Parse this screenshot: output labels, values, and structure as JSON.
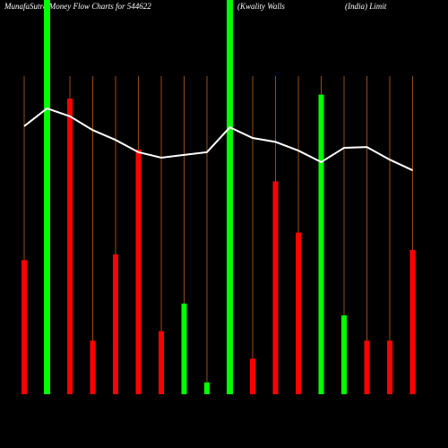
{
  "chart_data": {
    "type": "bar",
    "title_parts": [
      "MunafaSutra  Money Flow  Charts for 544622",
      "(Kwality Walls",
      "(India) Limit"
    ],
    "categories": [
      null,
      null,
      null,
      null,
      null,
      null,
      null,
      null,
      null,
      null,
      null,
      null,
      null,
      null,
      null,
      null,
      null,
      null
    ],
    "series": [
      {
        "name": "money-flow",
        "colors": [
          "#ff0000",
          "#00ff00",
          "#ff0000",
          "#ff0000",
          "#ff0000",
          "#ff0000",
          "#ff0000",
          "#00ff00",
          "#00ff00",
          "#00ff00",
          "#ff0000",
          "#ff0000",
          "#ff0000",
          "#00ff00",
          "#00ff00",
          "#ff0000",
          "#ff0000",
          "#ff0000"
        ],
        "values": [
          34,
          100,
          75,
          13.6,
          35.5,
          62,
          16,
          23,
          3,
          100,
          9,
          54,
          41,
          76,
          20,
          13.6,
          13.6,
          36.6
        ]
      },
      {
        "name": "trend",
        "type": "line",
        "color": "#ffffff",
        "values": [
          68,
          72.5,
          70.5,
          67,
          64.5,
          61.4,
          60,
          60.7,
          61.4,
          67.7,
          65,
          64,
          61.8,
          58.9,
          62.5,
          62.7,
          59.5,
          56.8
        ]
      }
    ],
    "ylim": [
      0,
      100
    ],
    "grid_color": "#b8621b"
  }
}
